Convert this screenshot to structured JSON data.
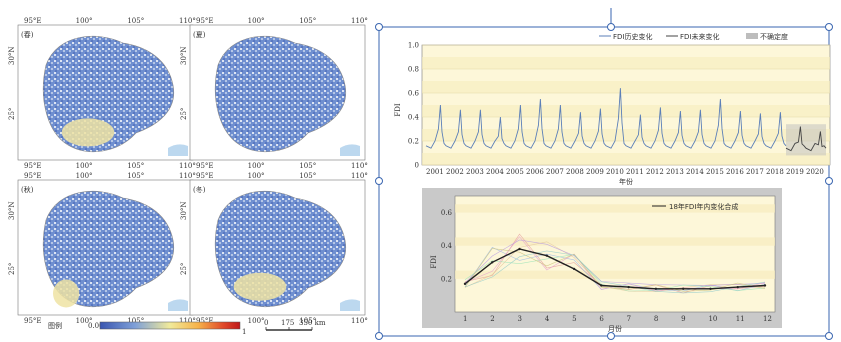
{
  "maps": {
    "panels": [
      {
        "label": "(春)",
        "lat_labels": [
          "30°N",
          "25°"
        ],
        "lon_labels": [
          "95°E",
          "100°",
          "105°",
          "110°"
        ]
      },
      {
        "label": "(夏)",
        "lat_labels": [
          "30°N",
          "25°"
        ],
        "lon_labels": [
          "95°E",
          "100°",
          "105°",
          "110°"
        ]
      },
      {
        "label": "(秋)",
        "lat_labels": [
          "30°N",
          "25°"
        ],
        "lon_labels": [
          "95°E",
          "100°",
          "105°",
          "110°"
        ]
      },
      {
        "label": "(冬)",
        "lat_labels": [
          "30°N",
          "25°"
        ],
        "lon_labels": [
          "95°E",
          "100°",
          "105°",
          "110°"
        ]
      }
    ],
    "colorbar": {
      "title": "图例",
      "min_label": "0.00",
      "max_label": "1",
      "colors": [
        "#3a56b0",
        "#7fa0d8",
        "#f1ea9a",
        "#f6b24a",
        "#e04a2a",
        "#c0181a"
      ]
    },
    "scalebar": {
      "labels": [
        "0",
        "175",
        "350 km"
      ]
    }
  },
  "chart_data": [
    {
      "type": "line",
      "title": "",
      "xlabel": "年份",
      "ylabel": "FDI",
      "ylim": [
        0,
        1.0
      ],
      "yticks": [
        "1.0",
        "0.8",
        "0.6",
        "0.4",
        "0.2",
        "0"
      ],
      "x_categories": [
        "2001",
        "2002",
        "2003",
        "2004",
        "2005",
        "2006",
        "2007",
        "2008",
        "2009",
        "2010",
        "2011",
        "2012",
        "2013",
        "2014",
        "2015",
        "2016",
        "2017",
        "2018",
        "2019",
        "2020"
      ],
      "legend": [
        "FDI历史变化",
        "FDI未来变化",
        "不确定度"
      ],
      "legend_position": "top-right",
      "series": [
        {
          "name": "FDI历史变化",
          "color": "#5b7fb8",
          "annual_peaks": [
            0.5,
            0.46,
            0.46,
            0.4,
            0.5,
            0.55,
            0.5,
            0.44,
            0.47,
            0.64,
            0.42,
            0.48,
            0.45,
            0.46,
            0.55,
            0.45,
            0.43,
            0.44
          ],
          "annual_baseline": 0.14
        },
        {
          "name": "FDI未来变化",
          "color": "#444444",
          "annual_peaks": [
            0.32,
            0.28
          ],
          "annual_baseline": 0.12
        }
      ]
    },
    {
      "type": "line",
      "title": "",
      "xlabel": "月份",
      "ylabel": "FDI",
      "ylim": [
        0,
        0.7
      ],
      "yticks": [
        "0.6",
        "0.4",
        "0.2"
      ],
      "x": [
        "1",
        "2",
        "3",
        "4",
        "5",
        "6",
        "7",
        "8",
        "9",
        "10",
        "11",
        "12"
      ],
      "legend": [
        "18年FDI年内变化合成"
      ],
      "legend_position": "top-right",
      "series": [
        {
          "name": "18年FDI年内变化合成",
          "color": "#222222",
          "values": [
            0.17,
            0.3,
            0.38,
            0.34,
            0.26,
            0.16,
            0.15,
            0.14,
            0.14,
            0.14,
            0.15,
            0.16
          ]
        }
      ]
    }
  ]
}
